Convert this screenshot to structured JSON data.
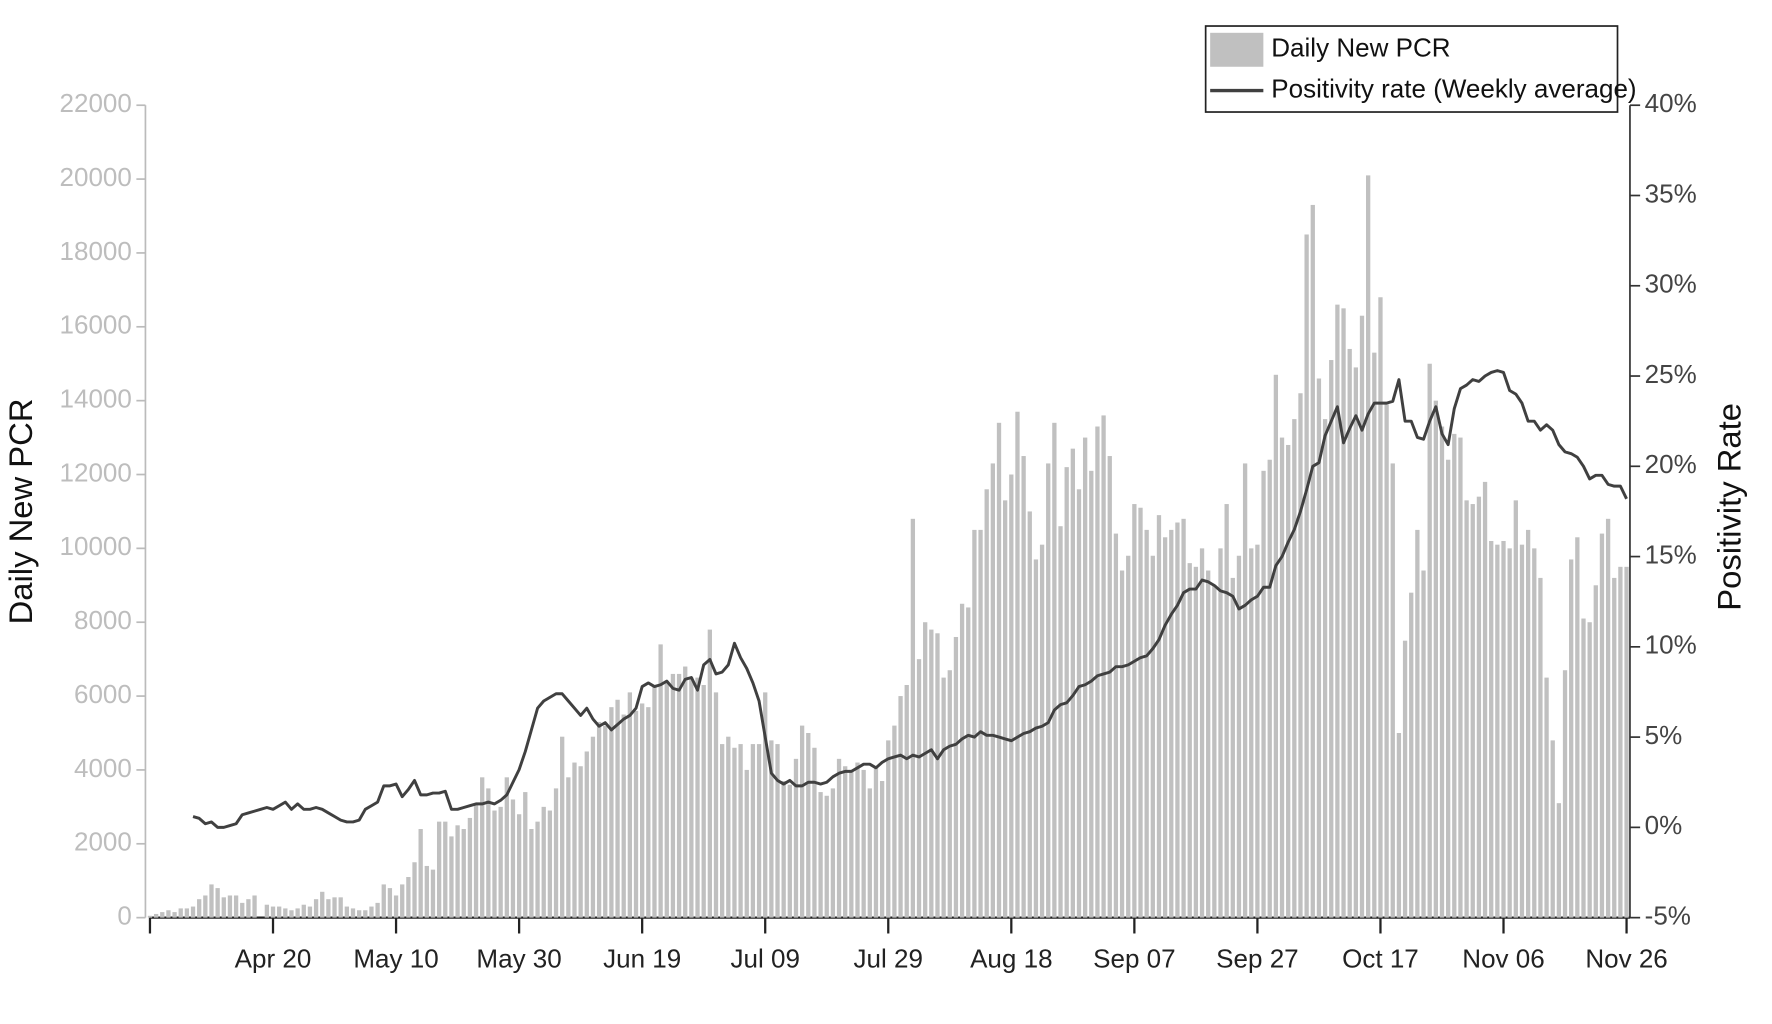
{
  "chart_data": {
    "type": "bar-line",
    "y_label": "Daily New PCR",
    "y2_label": "Positivity Rate",
    "legend": "top right",
    "ylim": [
      0,
      22000
    ],
    "yticks": [
      0,
      2000,
      4000,
      6000,
      8000,
      10000,
      12000,
      14000,
      16000,
      18000,
      20000,
      22000
    ],
    "y2lim": [
      -5,
      40
    ],
    "y2ticks": [
      {
        "value": -5,
        "label": "-5%"
      },
      {
        "value": 0,
        "label": "0%"
      },
      {
        "value": 5,
        "label": "5%"
      },
      {
        "value": 10,
        "label": "10%"
      },
      {
        "value": 15,
        "label": "15%"
      },
      {
        "value": 20,
        "label": "20%"
      },
      {
        "value": 25,
        "label": "25%"
      },
      {
        "value": 30,
        "label": "30%"
      },
      {
        "value": 35,
        "label": "35%"
      },
      {
        "value": 40,
        "label": "40%"
      }
    ],
    "categories": [
      null,
      null,
      null,
      null,
      null,
      null,
      null,
      null,
      null,
      null,
      null,
      null,
      null,
      null,
      null,
      null,
      null,
      null,
      null,
      null,
      "Apr 20",
      null,
      null,
      null,
      null,
      null,
      null,
      null,
      null,
      null,
      null,
      null,
      null,
      null,
      null,
      null,
      null,
      null,
      null,
      null,
      "May 10",
      null,
      null,
      null,
      null,
      null,
      null,
      null,
      null,
      null,
      null,
      null,
      null,
      null,
      null,
      null,
      null,
      null,
      null,
      null,
      "May 30",
      null,
      null,
      null,
      null,
      null,
      null,
      null,
      null,
      null,
      null,
      null,
      null,
      null,
      null,
      null,
      null,
      null,
      null,
      null,
      "Jun 19",
      null,
      null,
      null,
      null,
      null,
      null,
      null,
      null,
      null,
      null,
      null,
      null,
      null,
      null,
      null,
      null,
      null,
      null,
      null,
      "Jul 09",
      null,
      null,
      null,
      null,
      null,
      null,
      null,
      null,
      null,
      null,
      null,
      null,
      null,
      null,
      null,
      null,
      null,
      null,
      null,
      "Jul 29",
      null,
      null,
      null,
      null,
      null,
      null,
      null,
      null,
      null,
      null,
      null,
      null,
      null,
      null,
      null,
      null,
      null,
      null,
      null,
      "Aug 18",
      null,
      null,
      null,
      null,
      null,
      null,
      null,
      null,
      null,
      null,
      null,
      null,
      null,
      null,
      null,
      null,
      null,
      null,
      null,
      "Sep 07",
      null,
      null,
      null,
      null,
      null,
      null,
      null,
      null,
      null,
      null,
      null,
      null,
      null,
      null,
      null,
      null,
      null,
      null,
      null,
      "Sep 27",
      null,
      null,
      null,
      null,
      null,
      null,
      null,
      null,
      null,
      null,
      null,
      null,
      null,
      null,
      null,
      null,
      null,
      null,
      null,
      "Oct 17",
      null,
      null,
      null,
      null,
      null,
      null,
      null,
      null,
      null,
      null,
      null,
      null,
      null,
      null,
      null,
      null,
      null,
      null,
      null,
      "Nov 06",
      null,
      null,
      null,
      null,
      null,
      null,
      null,
      null,
      null,
      null,
      null,
      null,
      null,
      null,
      null,
      null,
      null,
      null,
      null,
      "Nov 26"
    ],
    "series": [
      {
        "name": "Daily New PCR",
        "color": "#c0c0c0",
        "values": [
          50,
          100,
          150,
          200,
          150,
          250,
          250,
          300,
          500,
          600,
          900,
          800,
          550,
          600,
          600,
          400,
          500,
          600,
          0,
          350,
          300,
          300,
          250,
          200,
          250,
          350,
          300,
          500,
          700,
          500,
          550,
          550,
          300,
          250,
          200,
          200,
          300,
          400,
          900,
          800,
          600,
          900,
          1100,
          1500,
          2400,
          1400,
          1300,
          2600,
          2600,
          2200,
          2500,
          2400,
          2700,
          3100,
          3800,
          3500,
          2900,
          3000,
          3800,
          3200,
          2800,
          3400,
          2400,
          2600,
          3000,
          2900,
          3500,
          4900,
          3800,
          4200,
          4100,
          4500,
          4900,
          5300,
          5200,
          5700,
          5900,
          5500,
          6100,
          5600,
          5800,
          5700,
          6300,
          7400,
          6400,
          6600,
          6600,
          6800,
          6500,
          6500,
          6300,
          7800,
          6100,
          4700,
          4900,
          4600,
          4700,
          4000,
          4700,
          4700,
          6100,
          4800,
          4700,
          3700,
          3600,
          4300,
          5200,
          5000,
          4600,
          3400,
          3300,
          3500,
          4300,
          4100,
          4000,
          4200,
          4000,
          3500,
          4100,
          3700,
          4800,
          5200,
          6000,
          6300,
          10800,
          7000,
          8000,
          7800,
          7700,
          6500,
          6700,
          7600,
          8500,
          8400,
          10500,
          10500,
          11600,
          12300,
          13400,
          11300,
          12000,
          13700,
          12500,
          11000,
          9700,
          10100,
          12300,
          13400,
          10600,
          12200,
          12700,
          11600,
          13000,
          12100,
          13300,
          13600,
          12500,
          10400,
          9400,
          9800,
          11200,
          11100,
          10500,
          9800,
          10900,
          10300,
          10500,
          10700,
          10800,
          9600,
          9500,
          10000,
          9400,
          9000,
          10000,
          11200,
          9200,
          9800,
          12300,
          10000,
          10100,
          12100,
          12400,
          14700,
          13000,
          12800,
          13500,
          14200,
          18500,
          19300,
          14600,
          13500,
          15100,
          16600,
          16500,
          15400,
          14900,
          16300,
          20100,
          15300,
          16800,
          13900,
          12300,
          5000,
          7500,
          8800,
          10500,
          9400,
          15000,
          14000,
          13300,
          12400,
          13100,
          13000,
          11300,
          11200,
          11400,
          11800,
          10200,
          10100,
          10200,
          10000,
          11300,
          10100,
          10500,
          10000,
          9200,
          6500,
          4800,
          3100,
          6700,
          9700,
          10300,
          8100,
          8000,
          9000,
          10400,
          10800,
          9200,
          9500,
          9500
        ]
      },
      {
        "name": "Positivity rate (Weekly average)",
        "color": "#404040",
        "axis": "y2",
        "values": [
          null,
          null,
          null,
          null,
          null,
          null,
          null,
          0.6,
          0.5,
          0.2,
          0.3,
          0,
          0,
          0.1,
          0.2,
          0.7,
          0.8,
          0.9,
          1.0,
          1.1,
          1.0,
          1.2,
          1.4,
          1.0,
          1.3,
          1.0,
          1.0,
          1.1,
          1.0,
          0.8,
          0.6,
          0.4,
          0.3,
          0.3,
          0.4,
          1.0,
          1.2,
          1.4,
          2.3,
          2.3,
          2.4,
          1.7,
          2.1,
          2.6,
          1.8,
          1.8,
          1.9,
          1.9,
          2.0,
          1.0,
          1.0,
          1.1,
          1.2,
          1.3,
          1.3,
          1.4,
          1.3,
          1.5,
          1.8,
          2.5,
          3.2,
          4.2,
          5.4,
          6.6,
          7.0,
          7.2,
          7.4,
          7.4,
          7.0,
          6.6,
          6.2,
          6.6,
          6.0,
          5.6,
          5.8,
          5.4,
          5.7,
          6.0,
          6.2,
          6.6,
          7.8,
          8.0,
          7.8,
          7.9,
          8.1,
          7.7,
          7.6,
          8.2,
          8.3,
          7.6,
          9.0,
          9.3,
          8.5,
          8.6,
          9.0,
          10.2,
          9.4,
          8.8,
          8.0,
          7.0,
          5.0,
          3.0,
          2.6,
          2.4,
          2.6,
          2.3,
          2.3,
          2.5,
          2.5,
          2.4,
          2.5,
          2.8,
          3.0,
          3.1,
          3.1,
          3.3,
          3.5,
          3.5,
          3.3,
          3.6,
          3.8,
          3.9,
          4.0,
          3.8,
          4.0,
          3.9,
          4.1,
          4.3,
          3.8,
          4.3,
          4.5,
          4.6,
          4.9,
          5.1,
          5.0,
          5.3,
          5.1,
          5.1,
          5.0,
          4.9,
          4.8,
          5.0,
          5.2,
          5.3,
          5.5,
          5.6,
          5.8,
          6.5,
          6.8,
          6.9,
          7.3,
          7.8,
          7.9,
          8.1,
          8.4,
          8.5,
          8.6,
          8.9,
          8.9,
          9.0,
          9.2,
          9.4,
          9.5,
          9.9,
          10.4,
          11.2,
          11.8,
          12.3,
          13.0,
          13.2,
          13.2,
          13.7,
          13.6,
          13.4,
          13.1,
          13.0,
          12.8,
          12.1,
          12.3,
          12.6,
          12.8,
          13.3,
          13.3,
          14.5,
          15.0,
          15.8,
          16.5,
          17.5,
          18.7,
          20.0,
          20.2,
          21.7,
          22.5,
          23.3,
          21.3,
          22.1,
          22.8,
          22.0,
          22.9,
          23.5,
          23.5,
          23.5,
          23.6,
          24.8,
          22.5,
          22.5,
          21.6,
          21.5,
          22.5,
          23.3,
          21.8,
          21.2,
          23.2,
          24.3,
          24.5,
          24.8,
          24.7,
          25.0,
          25.2,
          25.3,
          25.2,
          24.2,
          24.0,
          23.5,
          22.5,
          22.5,
          22.0,
          22.3,
          22.0,
          21.2,
          20.8,
          20.7,
          20.5,
          20.0,
          19.3,
          19.5,
          19.5,
          19.0,
          18.9,
          18.9,
          18.2
        ]
      }
    ]
  }
}
